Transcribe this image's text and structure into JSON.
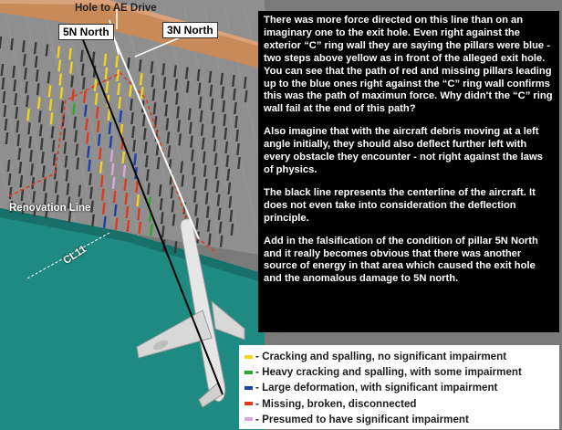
{
  "labels": {
    "hole": "Hole to AE Drive",
    "pillar_5n": "5N North",
    "pillar_3n": "3N North",
    "renovation": "Renovation Line",
    "centerline": "CL11"
  },
  "text_panel": {
    "paragraphs": [
      "There was more force directed on this line than on an imaginary one to the exit hole. Even right against the exterior “C” ring wall they are saying the pillars were blue - two steps above yellow as in front of the alleged exit hole. You can see that the path of red and missing pillars leading up to the blue ones right against the “C” ring wall confirms this was the path of maximun force. Why didn't the “C” ring wall fail at the end of this path?",
      "Also imagine that with the aircraft debris moving at a left angle initially, they should also deflect further left with every obstacle they encounter - not right against the laws of physics.",
      "The black line represents the centerline of the aircraft. It does not even take into consideration the deflection principle.",
      "Add in the falsification of the condition of pillar 5N North and it really becomes obvious that there was another source of energy in that area which caused the exit hole and the anomalous damage to 5N north."
    ]
  },
  "legend": {
    "items": [
      {
        "color": "#f2d21c",
        "text": "- Cracking and spalling, no significant impairment"
      },
      {
        "color": "#2fa836",
        "text": "- Heavy cracking and spalling, with some impairment"
      },
      {
        "color": "#1e3fa8",
        "text": "- Large deformation, with significant impairment"
      },
      {
        "color": "#e03a1e",
        "text": "- Missing, broken, disconnected"
      },
      {
        "color": "#d9a8d6",
        "text": "- Presumed to have significant impairment"
      }
    ]
  },
  "colors": {
    "lawn": "#1f8a82",
    "floor": "#8c8c8c",
    "ring_wall": "#c98a5a",
    "pillar": "#3a3a3a"
  }
}
